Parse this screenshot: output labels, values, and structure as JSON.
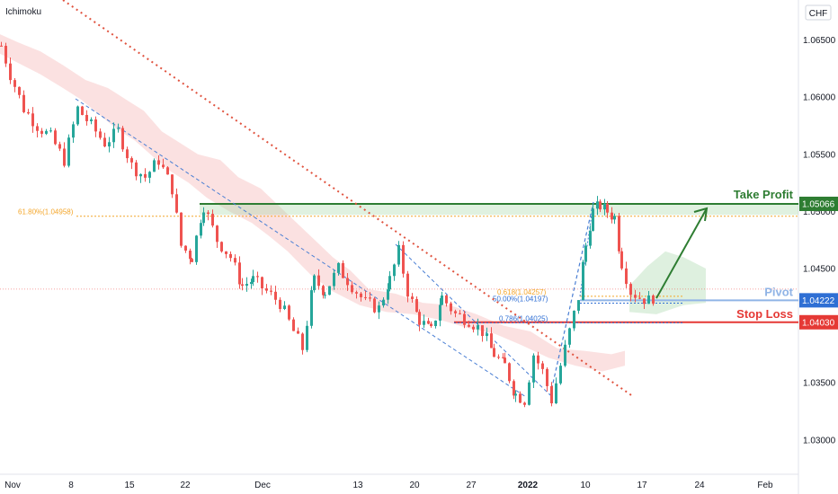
{
  "chart_data": {
    "type": "candlestick",
    "indicator_label": "Ichimoku",
    "currency": "CHF",
    "ylim": [
      1.027,
      1.0685
    ],
    "y_ticks": [
      {
        "value": 1.065,
        "label": "1.06500"
      },
      {
        "value": 1.06,
        "label": "1.06000"
      },
      {
        "value": 1.055,
        "label": "1.05500"
      },
      {
        "value": 1.05,
        "label": "1.05000"
      },
      {
        "value": 1.045,
        "label": "1.04500"
      },
      {
        "value": 1.035,
        "label": "1.03500"
      },
      {
        "value": 1.03,
        "label": "1.03000"
      }
    ],
    "x_ticks": [
      {
        "label": "Nov"
      },
      {
        "label": "8"
      },
      {
        "label": "15"
      },
      {
        "label": "22"
      },
      {
        "label": "Dec"
      },
      {
        "label": "13"
      },
      {
        "label": "20"
      },
      {
        "label": "27"
      },
      {
        "label": "2022"
      },
      {
        "label": "10"
      },
      {
        "label": "17"
      },
      {
        "label": "24"
      },
      {
        "label": "Feb"
      }
    ],
    "levels": {
      "take_profit": {
        "label": "Take Profit",
        "value": 1.05066,
        "price_label": "1.05066",
        "color": "#2e7d32"
      },
      "pivot": {
        "label": "Pivot",
        "value": 1.04222,
        "price_label": "1.04222",
        "color": "#90b4e6"
      },
      "stop_loss": {
        "label": "Stop Loss",
        "value": 1.0403,
        "price_label": "1.04030",
        "color": "#e53935"
      }
    },
    "fib_levels": [
      {
        "label": "61.80%(1.04958)",
        "value": 1.04958,
        "color": "#f4a62a"
      },
      {
        "label": "0.618(1.04257)",
        "value": 1.04257,
        "color": "#f4a62a"
      },
      {
        "label": "50.00%(1.04197)",
        "value": 1.04197,
        "color": "#2f6fd4"
      },
      {
        "label": "0.786(1.04025)",
        "value": 1.04025,
        "color": "#2f6fd4"
      }
    ],
    "up_color": "#26a69a",
    "down_color": "#ef5350",
    "cloud_color": "#f8c8c8"
  }
}
